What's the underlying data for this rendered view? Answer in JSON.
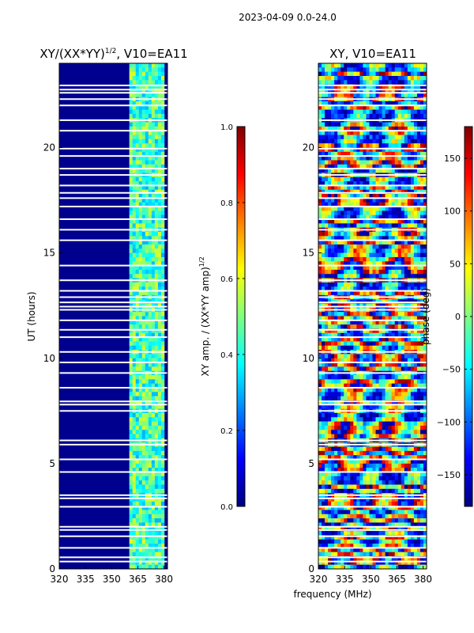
{
  "suptitle": "2023-04-09 0.0-24.0",
  "colors": {
    "background_amp": "#00008f",
    "gap_white": "#ffffff",
    "jet": [
      "#00007f",
      "#0000ff",
      "#007fff",
      "#00ffff",
      "#7fff7f",
      "#ffff00",
      "#ff7f00",
      "#ff0000",
      "#7f0000"
    ]
  },
  "chart_data": [
    {
      "type": "heatmap",
      "title": "XY/(XX*YY)",
      "title_exponent": "1/2",
      "title_suffix": ", V10=EA11",
      "xlabel": "",
      "ylabel": "UT (hours)",
      "xlim": [
        320,
        382
      ],
      "ylim": [
        0,
        24
      ],
      "xticks": [
        "320",
        "335",
        "350",
        "365",
        "380"
      ],
      "xtick_values": [
        320,
        335,
        350,
        365,
        380
      ],
      "yticks": [
        "0",
        "5",
        "10",
        "15",
        "20"
      ],
      "ytick_values": [
        0,
        5,
        10,
        15,
        20
      ],
      "band_signal_mhz": [
        360,
        381
      ],
      "colorbar": {
        "label": "XY amp. / (XX*YY amp)",
        "label_exponent": "1/2",
        "range": [
          0.0,
          1.0
        ],
        "ticks": [
          "0.0",
          "0.2",
          "0.4",
          "0.6",
          "0.8",
          "1.0"
        ],
        "tick_values": [
          0.0,
          0.2,
          0.4,
          0.6,
          0.8,
          1.0
        ]
      }
    },
    {
      "type": "heatmap",
      "title": "XY, V10=EA11",
      "xlabel": "frequency (MHz)",
      "ylabel": "",
      "xlim": [
        320,
        382
      ],
      "ylim": [
        0,
        24
      ],
      "xticks": [
        "320",
        "335",
        "350",
        "365",
        "380"
      ],
      "xtick_values": [
        320,
        335,
        350,
        365,
        380
      ],
      "yticks": [
        "0",
        "5",
        "10",
        "15",
        "20"
      ],
      "ytick_values": [
        0,
        5,
        10,
        15,
        20
      ],
      "colorbar": {
        "label": "phase (deg)",
        "range": [
          -180,
          180
        ],
        "ticks": [
          "−150",
          "−100",
          "−50",
          "0",
          "50",
          "100",
          "150"
        ],
        "tick_values": [
          -150,
          -100,
          -50,
          0,
          50,
          100,
          150
        ]
      }
    }
  ],
  "gap_hours": [
    0.35,
    0.55,
    1.0,
    1.55,
    1.85,
    2.0,
    2.95,
    3.35,
    3.5,
    4.6,
    5.2,
    5.9,
    6.1,
    7.5,
    7.8,
    7.95,
    8.6,
    9.3,
    9.8,
    10.3,
    11.0,
    11.35,
    11.8,
    12.3,
    12.45,
    12.65,
    12.9,
    13.2,
    13.7,
    14.4,
    15.6,
    16.1,
    16.6,
    17.2,
    17.6,
    17.85,
    18.2,
    18.7,
    19.0,
    19.6,
    19.95,
    20.8,
    21.3,
    22.0,
    22.3,
    22.6,
    22.75,
    22.95
  ]
}
